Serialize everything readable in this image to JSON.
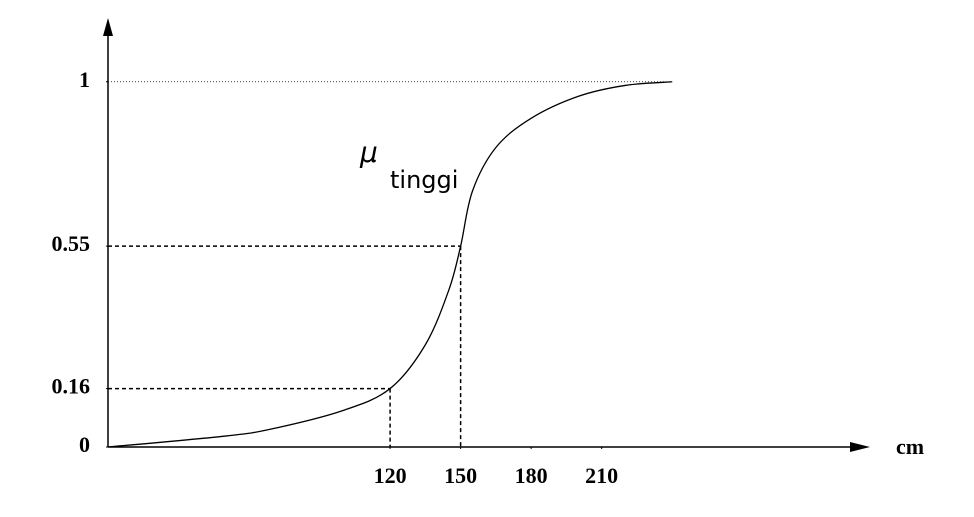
{
  "chart_data": {
    "type": "line",
    "x": [
      0,
      50,
      70,
      100,
      120,
      135,
      145,
      150,
      155,
      165,
      180,
      200,
      220,
      240
    ],
    "values": [
      0,
      0.03,
      0.05,
      0.1,
      0.16,
      0.28,
      0.43,
      0.55,
      0.7,
      0.82,
      0.9,
      0.96,
      0.99,
      1
    ],
    "color": "#000000",
    "xlim": [
      0,
      325
    ],
    "ylim": [
      0,
      1.15
    ],
    "xticks": [
      120,
      150,
      180,
      210
    ],
    "yticks": [
      0,
      0.16,
      0.55,
      1
    ],
    "x_label": "cm",
    "annotation": {
      "symbol": "μ",
      "subscript": "tinggi"
    },
    "guides": [
      {
        "x": 120,
        "y": 0.16,
        "style": "dashed"
      },
      {
        "x": 150,
        "y": 0.55,
        "style": "dashed"
      },
      {
        "x": 240,
        "y": 1,
        "style": "dotted"
      }
    ],
    "grid": false
  }
}
